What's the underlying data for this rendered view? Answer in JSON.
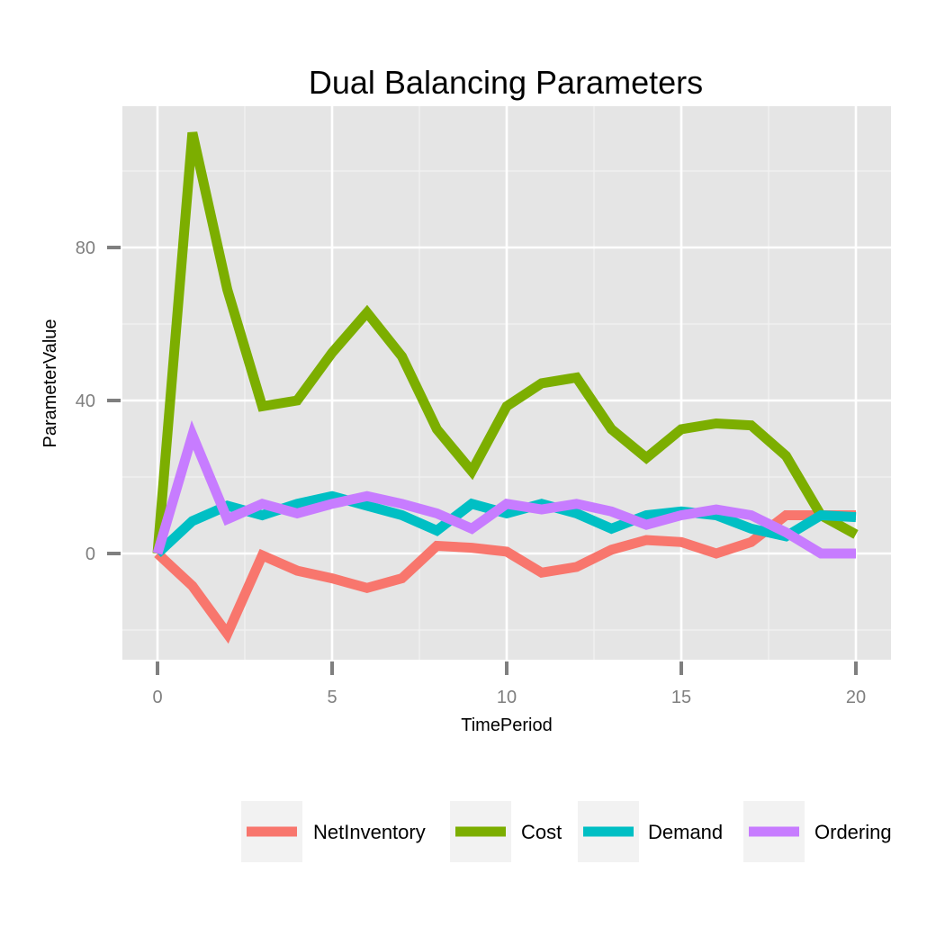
{
  "chart_data": {
    "type": "line",
    "title": "Dual Balancing Parameters",
    "xlabel": "TimePeriod",
    "ylabel": "ParameterValue",
    "xlim": [
      0,
      20
    ],
    "ylim": [
      -28,
      117
    ],
    "x_ticks": [
      0,
      5,
      10,
      15,
      20
    ],
    "y_ticks": [
      0,
      40,
      80
    ],
    "grid": true,
    "legend_position": "bottom",
    "x": [
      0,
      1,
      2,
      3,
      4,
      5,
      6,
      7,
      8,
      9,
      10,
      11,
      12,
      13,
      14,
      15,
      16,
      17,
      18,
      19,
      20
    ],
    "series": [
      {
        "name": "NetInventory",
        "color": "#F8766D",
        "values": [
          0,
          -8.5,
          -21,
          -0.5,
          -4.5,
          -6.5,
          -9,
          -6.5,
          2,
          1.5,
          0.5,
          -5,
          -3.5,
          1,
          3.5,
          3,
          0,
          3,
          10,
          10,
          10
        ]
      },
      {
        "name": "Cost",
        "color": "#7CAE00",
        "values": [
          0,
          110,
          69,
          38.5,
          40,
          52.5,
          63,
          51.5,
          32.5,
          21.5,
          38.5,
          44.5,
          46,
          32.5,
          25,
          32.5,
          34,
          33.5,
          25.5,
          10,
          5
        ]
      },
      {
        "name": "Demand",
        "color": "#00BFC4",
        "values": [
          0,
          8.5,
          12.5,
          10,
          13,
          15,
          12.5,
          10,
          6,
          13,
          10.5,
          13,
          10.5,
          6.5,
          10,
          11,
          10,
          6.5,
          4.5,
          10,
          9.5
        ]
      },
      {
        "name": "Ordering",
        "color": "#C77CFF",
        "values": [
          0,
          31,
          9,
          13,
          10.5,
          13,
          15,
          13,
          10.5,
          6.5,
          13,
          11.5,
          13,
          11,
          7.5,
          10,
          11.5,
          10,
          5.5,
          0,
          0
        ]
      }
    ]
  }
}
